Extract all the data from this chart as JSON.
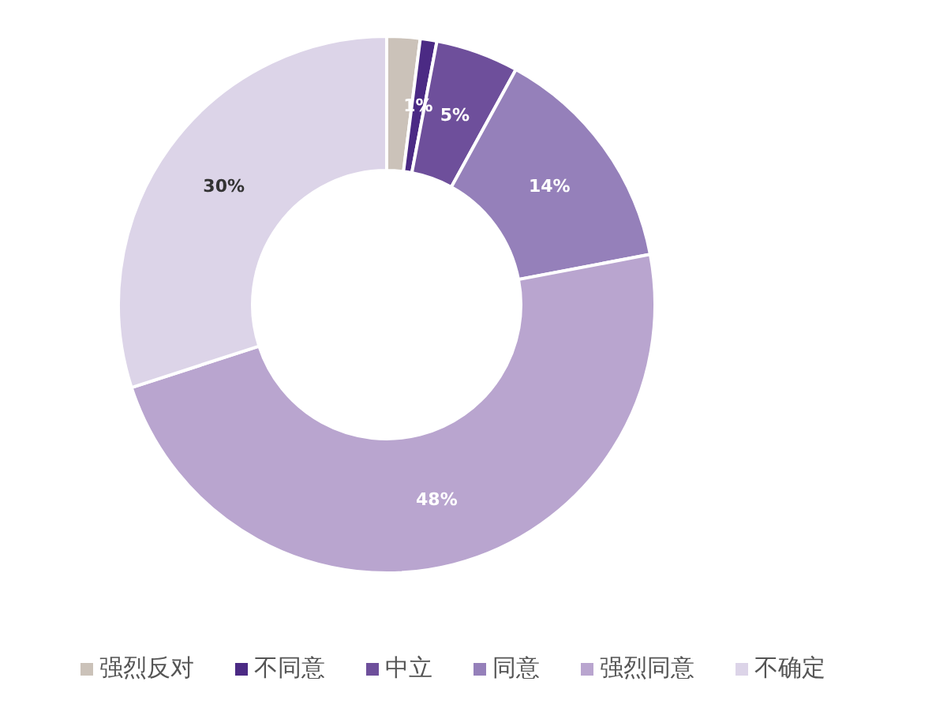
{
  "chart_data": {
    "type": "donut",
    "categories": [
      "强烈反对",
      "不同意",
      "中立",
      "同意",
      "强烈同意",
      "不确定"
    ],
    "values": [
      2,
      1,
      5,
      14,
      48,
      30
    ],
    "value_labels": [
      null,
      "1%",
      "5%",
      "14%",
      "48%",
      "30%"
    ],
    "colors": [
      "#cbc2b9",
      "#4b2a84",
      "#6e4f9b",
      "#9580ba",
      "#b9a5cf",
      "#dcd4e8"
    ],
    "legend": "bottom"
  }
}
